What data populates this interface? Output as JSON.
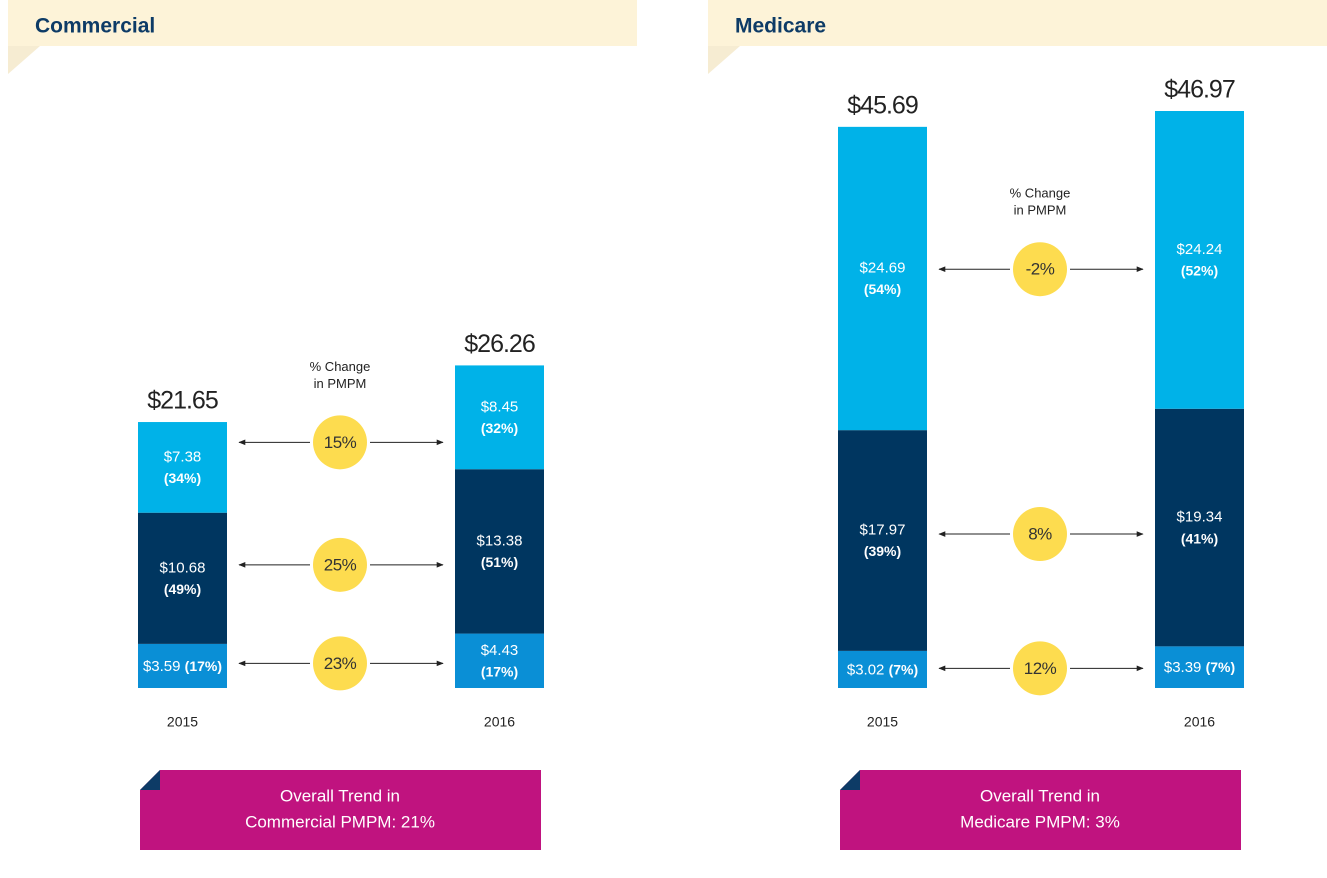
{
  "chart_data": [
    {
      "type": "bar",
      "stacked": true,
      "title": "Commercial",
      "categories": [
        "2015",
        "2016"
      ],
      "totals": [
        21.65,
        26.26
      ],
      "total_labels": [
        "$21.65",
        "$26.26"
      ],
      "change_heading": [
        "% Change",
        "in PMPM"
      ],
      "series": [
        {
          "color": "#0a8fd6",
          "values": [
            3.59,
            4.43
          ],
          "value_labels": [
            "$3.59",
            "$4.43"
          ],
          "shares": [
            17,
            17
          ],
          "share_labels": [
            "(17%)",
            "(17%)"
          ],
          "change": 23,
          "change_label": "23%"
        },
        {
          "color": "#003660",
          "values": [
            10.68,
            13.38
          ],
          "value_labels": [
            "$10.68",
            "$13.38"
          ],
          "shares": [
            49,
            51
          ],
          "share_labels": [
            "(49%)",
            "(51%)"
          ],
          "change": 25,
          "change_label": "25%"
        },
        {
          "color": "#00b2e8",
          "values": [
            7.38,
            8.45
          ],
          "value_labels": [
            "$7.38",
            "$8.45"
          ],
          "shares": [
            34,
            32
          ],
          "share_labels": [
            "(34%)",
            "(32%)"
          ],
          "change": 15,
          "change_label": "15%"
        }
      ],
      "note": [
        "Overall Trend in",
        "Commercial PMPM: 21%"
      ]
    },
    {
      "type": "bar",
      "stacked": true,
      "title": "Medicare",
      "categories": [
        "2015",
        "2016"
      ],
      "totals": [
        45.69,
        46.97
      ],
      "total_labels": [
        "$45.69",
        "$46.97"
      ],
      "change_heading": [
        "% Change",
        "in PMPM"
      ],
      "series": [
        {
          "color": "#0a8fd6",
          "values": [
            3.02,
            3.39
          ],
          "value_labels": [
            "$3.02",
            "$3.39"
          ],
          "shares": [
            7,
            7
          ],
          "share_labels": [
            "(7%)",
            "(7%)"
          ],
          "change": 12,
          "change_label": "12%"
        },
        {
          "color": "#003660",
          "values": [
            17.97,
            19.34
          ],
          "value_labels": [
            "$17.97",
            "$19.34"
          ],
          "shares": [
            39,
            41
          ],
          "share_labels": [
            "(39%)",
            "(41%)"
          ],
          "change": 8,
          "change_label": "8%"
        },
        {
          "color": "#00b2e8",
          "values": [
            24.69,
            24.24
          ],
          "value_labels": [
            "$24.69",
            "$24.24"
          ],
          "shares": [
            54,
            52
          ],
          "share_labels": [
            "(54%)",
            "(52%)"
          ],
          "change": -2,
          "change_label": "-2%"
        }
      ],
      "note": [
        "Overall Trend in",
        "Medicare PMPM: 3%"
      ]
    }
  ]
}
